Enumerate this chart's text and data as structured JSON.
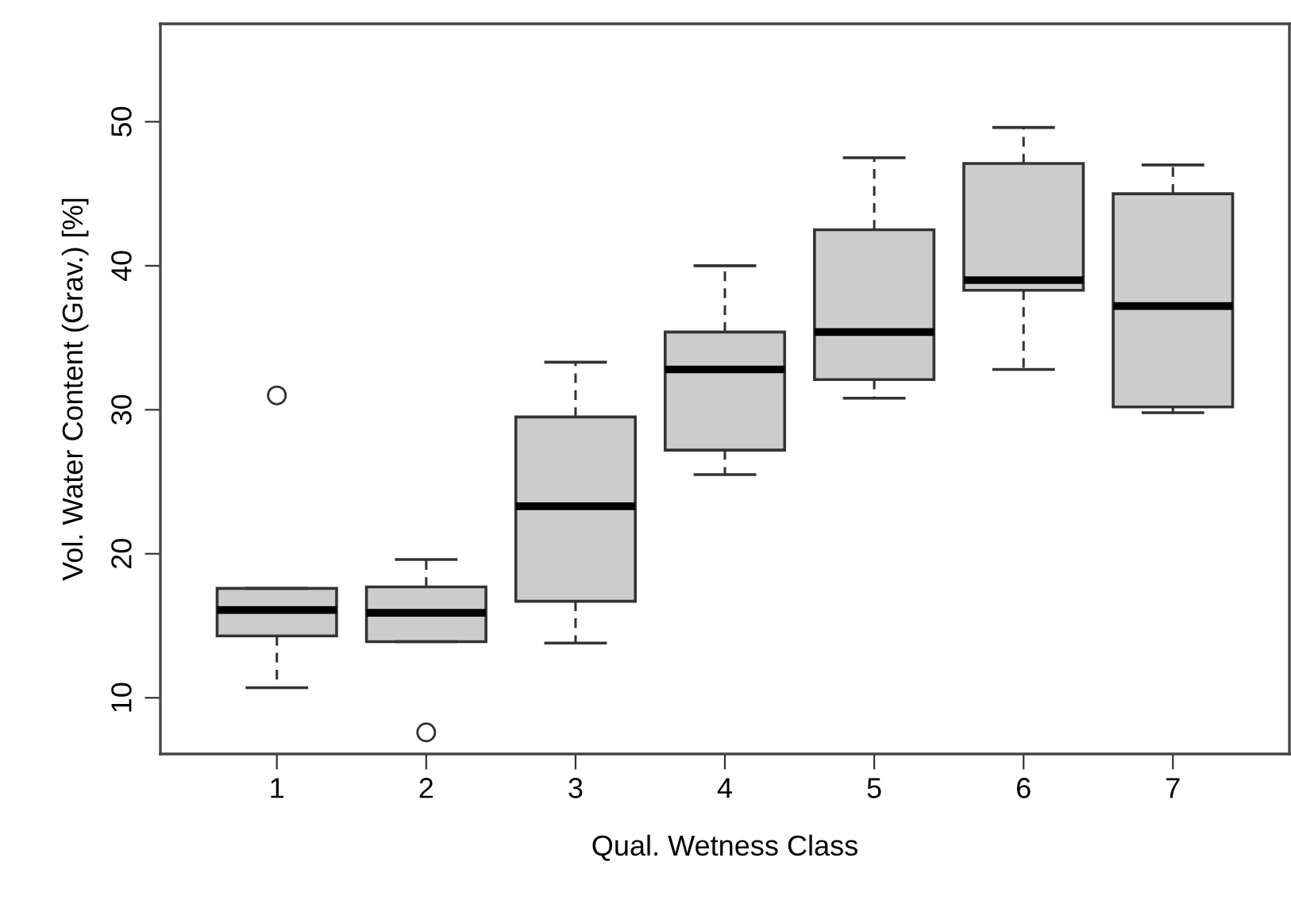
{
  "chart_data": {
    "type": "box",
    "xlabel": "Qual. Wetness Class",
    "ylabel": "Vol. Water Content (Grav.) [%]",
    "categories": [
      "1",
      "2",
      "3",
      "4",
      "5",
      "6",
      "7"
    ],
    "color": "#cccccc",
    "boxes": [
      {
        "low": 10.7,
        "q1": 14.3,
        "median": 16.1,
        "q3": 17.6,
        "high": 17.6,
        "outliers": [
          31.0
        ]
      },
      {
        "low": 13.9,
        "q1": 13.9,
        "median": 15.9,
        "q3": 17.7,
        "high": 19.6,
        "outliers": [
          7.6
        ]
      },
      {
        "low": 13.8,
        "q1": 16.7,
        "median": 23.3,
        "q3": 29.5,
        "high": 33.3
      },
      {
        "low": 25.5,
        "q1": 27.2,
        "median": 32.8,
        "q3": 35.4,
        "high": 40.0
      },
      {
        "low": 30.8,
        "q1": 32.1,
        "median": 35.4,
        "q3": 42.5,
        "high": 47.5
      },
      {
        "low": 32.8,
        "q1": 38.3,
        "median": 39.0,
        "q3": 47.1,
        "high": 49.6
      },
      {
        "low": 29.8,
        "q1": 30.2,
        "median": 37.2,
        "q3": 45.0,
        "high": 47.0
      }
    ],
    "ylim": [
      6.1,
      56.8
    ],
    "yticks": [
      10,
      20,
      30,
      40,
      50
    ],
    "grid": false,
    "legend": false
  }
}
